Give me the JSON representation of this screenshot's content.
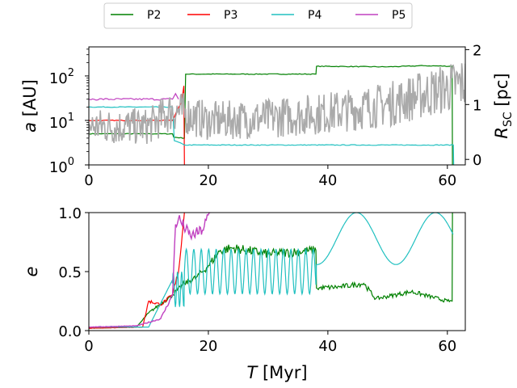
{
  "chart_data": [
    {
      "type": "line",
      "panel": "top",
      "ylabel_left": "a [AU]",
      "ylabel_right": "R_SC [pc]",
      "yscale_left": "log",
      "ylim_left": [
        1,
        450
      ],
      "ylim_right": [
        -0.1,
        2.05
      ],
      "xlim": [
        0,
        63
      ],
      "xticks": [
        0,
        20,
        40,
        60
      ],
      "xticklabels": [
        "0",
        "20",
        "40",
        "60"
      ],
      "yticklabels_left": [
        "10",
        "10",
        "10"
      ],
      "yticklabels_left_exp": [
        "0",
        "1",
        "2"
      ],
      "yticks_left": [
        1,
        10,
        100
      ],
      "yticks_right": [
        0,
        1,
        2
      ],
      "yticklabels_right": [
        "0",
        "1",
        "2"
      ],
      "series": [
        {
          "name": "P2",
          "color": "#008000",
          "x": [
            0,
            14,
            14.2,
            16,
            16.2,
            38,
            38.1,
            50,
            56,
            60.8,
            60.85
          ],
          "y": [
            5,
            5,
            4.2,
            4.0,
            110,
            110,
            165,
            160,
            170,
            165,
            1
          ]
        },
        {
          "name": "P3",
          "color": "#ff0000",
          "x": [
            0,
            14,
            14.3,
            15.5,
            15.9,
            16.0
          ],
          "y": [
            10,
            10,
            12,
            25,
            60,
            1
          ]
        },
        {
          "name": "P4",
          "color": "#20c0c0",
          "x": [
            0,
            14,
            14.3,
            16,
            61.0,
            61.05
          ],
          "y": [
            20,
            20,
            3.5,
            2.8,
            2.8,
            1
          ]
        },
        {
          "name": "P5",
          "color": "#c040c0",
          "x": [
            0,
            14,
            14.5,
            15
          ],
          "y": [
            30,
            30,
            40,
            30
          ]
        },
        {
          "name": "R_SC",
          "color": "#aaaaaa",
          "axis": "right",
          "x": [
            0,
            10,
            14,
            20,
            30,
            40,
            50,
            60,
            63
          ],
          "y": [
            0.6,
            0.6,
            0.9,
            0.7,
            0.75,
            0.85,
            1.0,
            1.3,
            1.4
          ]
        }
      ]
    },
    {
      "type": "line",
      "panel": "bottom",
      "xlabel": "T [Myr]",
      "ylabel": "e",
      "xlim": [
        0,
        63
      ],
      "ylim": [
        0,
        1.0
      ],
      "xticks": [
        0,
        20,
        40,
        60
      ],
      "xticklabels": [
        "0",
        "20",
        "40",
        "60"
      ],
      "yticks": [
        0,
        0.5,
        1.0
      ],
      "yticklabels": [
        "0.0",
        "0.5",
        "1.0"
      ],
      "series": [
        {
          "name": "P2",
          "color": "#008000",
          "x": [
            0,
            8,
            10,
            14,
            16,
            18,
            20,
            22,
            24,
            30,
            38,
            38.1,
            42,
            46,
            48,
            54,
            60,
            60.8,
            60.85
          ],
          "y": [
            0.02,
            0.03,
            0.15,
            0.3,
            0.4,
            0.45,
            0.55,
            0.68,
            0.7,
            0.65,
            0.68,
            0.36,
            0.37,
            0.4,
            0.27,
            0.33,
            0.25,
            0.25,
            1.0
          ]
        },
        {
          "name": "P3",
          "color": "#ff0000",
          "x": [
            0,
            9,
            10,
            12,
            14,
            15,
            15.8,
            16
          ],
          "y": [
            0.02,
            0.03,
            0.25,
            0.22,
            0.3,
            0.5,
            0.9,
            1.0
          ]
        },
        {
          "name": "P4",
          "color": "#20c0c0",
          "x": [
            0,
            10,
            14,
            15,
            16,
            38
          ],
          "y": [
            0.02,
            0.03,
            0.45,
            0.35,
            0.5,
            0.5
          ]
        },
        {
          "name": "P5",
          "color": "#c040c0",
          "x": [
            0,
            8,
            12,
            14,
            14.5,
            15,
            17,
            19,
            20.3
          ],
          "y": [
            0.03,
            0.04,
            0.1,
            0.3,
            0.9,
            0.95,
            0.8,
            0.85,
            1.0
          ]
        }
      ]
    }
  ],
  "legend": {
    "placement": "top-center",
    "entries": [
      {
        "name": "P2",
        "color": "#008000"
      },
      {
        "name": "P3",
        "color": "#ff0000"
      },
      {
        "name": "P4",
        "color": "#20c0c0"
      },
      {
        "name": "P5",
        "color": "#c040c0"
      }
    ]
  },
  "labels": {
    "top_ylabel_left_italic": "a",
    "top_ylabel_left_unit": " [AU]",
    "top_ylabel_right_main": "R",
    "top_ylabel_right_sub": "SC",
    "top_ylabel_right_unit": " [pc]",
    "bottom_ylabel": "e",
    "bottom_xlabel_italic": "T",
    "bottom_xlabel_unit": " [Myr]"
  }
}
